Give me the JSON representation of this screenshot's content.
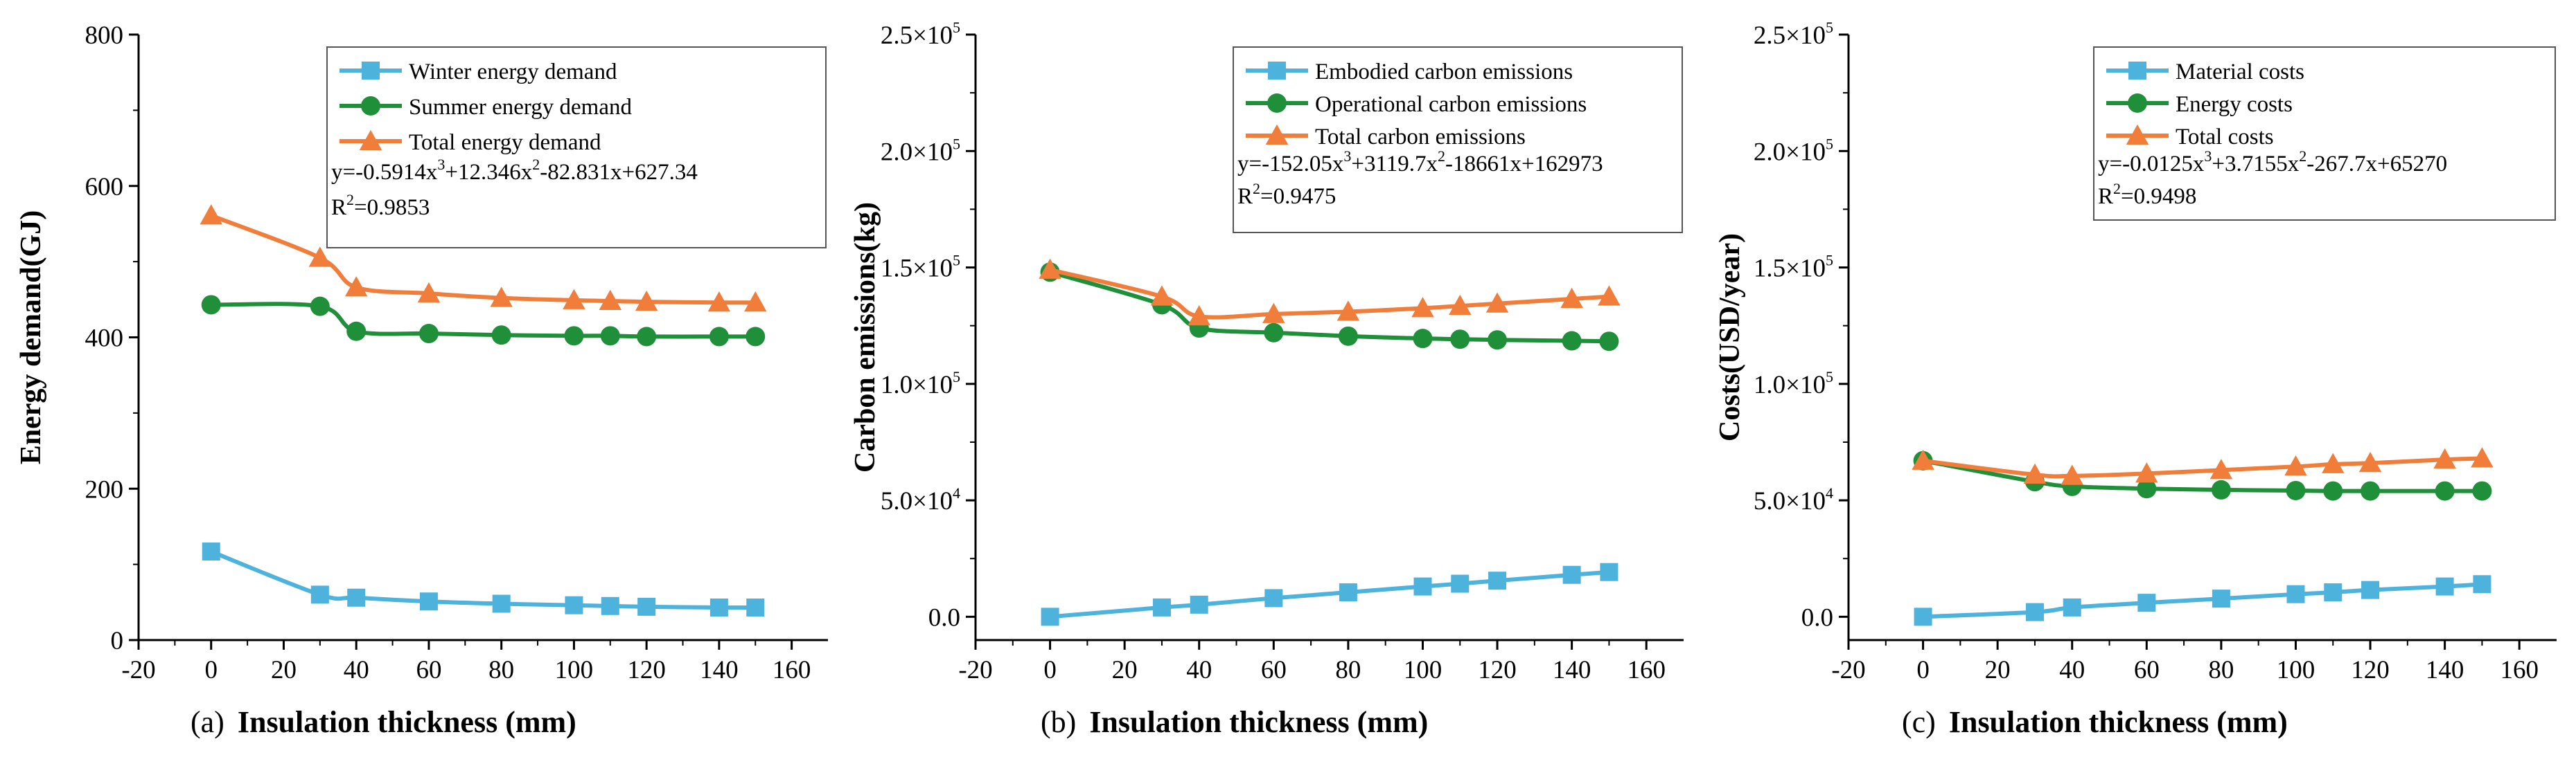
{
  "chart_data": [
    {
      "type": "line",
      "panel": "a",
      "caption_prefix": "(a)",
      "xlabel": "Insulation thickness (mm)",
      "ylabel": "Energy demand(GJ)",
      "xlim": [
        -20,
        170
      ],
      "ylim": [
        0,
        800
      ],
      "xticks": [
        -20,
        0,
        20,
        40,
        60,
        80,
        100,
        120,
        140,
        160
      ],
      "yticks": [
        {
          "v": 0,
          "label": "0"
        },
        {
          "v": 200,
          "label": "200"
        },
        {
          "v": 400,
          "label": "400"
        },
        {
          "v": 600,
          "label": "600"
        },
        {
          "v": 800,
          "label": "800"
        }
      ],
      "x": [
        0,
        30,
        40,
        60,
        80,
        100,
        110,
        120,
        140,
        150
      ],
      "series": [
        {
          "name": "Winter energy demand",
          "color": "#4db3dc",
          "marker": "square",
          "values": [
            117,
            60,
            56,
            51,
            48,
            46,
            45,
            44,
            43,
            43
          ]
        },
        {
          "name": "Summer energy demand",
          "color": "#1f8f3a",
          "marker": "circle",
          "values": [
            443,
            441,
            408,
            405,
            403,
            402,
            402,
            401,
            401,
            401
          ]
        },
        {
          "name": "Total energy demand",
          "color": "#f07e3a",
          "marker": "triangle",
          "values": [
            561,
            505,
            466,
            458,
            452,
            449,
            448,
            447,
            446,
            446
          ]
        }
      ],
      "equation": {
        "prefix": "y=-0.5914x",
        "sup1": "3",
        "mid1": "+12.346x",
        "sup2": "2",
        "rest": "-82.831x+627.34"
      },
      "r2": {
        "base": "R",
        "sup": "2",
        "value": "=0.9853"
      }
    },
    {
      "type": "line",
      "panel": "b",
      "caption_prefix": "(b)",
      "xlabel": "Insulation thickness (mm)",
      "ylabel": "Carbon emissions(kg)",
      "xlim": [
        -20,
        170
      ],
      "ylim": [
        -10000,
        250000
      ],
      "xticks": [
        -20,
        0,
        20,
        40,
        60,
        80,
        100,
        120,
        140,
        160
      ],
      "yticks": [
        {
          "v": 0,
          "label": "0.0"
        },
        {
          "v": 50000,
          "label": "5.0×10",
          "exp": "4"
        },
        {
          "v": 100000,
          "label": "1.0×10",
          "exp": "5"
        },
        {
          "v": 150000,
          "label": "1.5×10",
          "exp": "5"
        },
        {
          "v": 200000,
          "label": "2.0×10",
          "exp": "5"
        },
        {
          "v": 250000,
          "label": "2.5×10",
          "exp": "5"
        }
      ],
      "x": [
        0,
        30,
        40,
        60,
        80,
        100,
        110,
        120,
        140,
        150
      ],
      "series": [
        {
          "name": "Embodied carbon emissions",
          "color": "#4db3dc",
          "marker": "square",
          "values": [
            0,
            4000,
            5200,
            8000,
            10500,
            13000,
            14200,
            15500,
            18000,
            19200
          ]
        },
        {
          "name": "Operational carbon emissions",
          "color": "#1f8f3a",
          "marker": "circle",
          "values": [
            148000,
            134000,
            124000,
            122000,
            120500,
            119500,
            119200,
            118900,
            118500,
            118300
          ]
        },
        {
          "name": "Total carbon emissions",
          "color": "#f07e3a",
          "marker": "triangle",
          "values": [
            149000,
            137500,
            129000,
            130000,
            131000,
            132500,
            133500,
            134500,
            136500,
            137500
          ]
        }
      ],
      "equation": {
        "prefix": "y=-152.05x",
        "sup1": "3",
        "mid1": "+3119.7x",
        "sup2": "2",
        "rest": "-18661x+162973"
      },
      "r2": {
        "base": "R",
        "sup": "2",
        "value": "=0.9475"
      }
    },
    {
      "type": "line",
      "panel": "c",
      "caption_prefix": "(c)",
      "xlabel": "Insulation thickness (mm)",
      "ylabel": "Costs(USD/year)",
      "xlim": [
        -20,
        170
      ],
      "ylim": [
        -10000,
        250000
      ],
      "xticks": [
        -20,
        0,
        20,
        40,
        60,
        80,
        100,
        120,
        140,
        160
      ],
      "yticks": [
        {
          "v": 0,
          "label": "0.0"
        },
        {
          "v": 50000,
          "label": "5.0×10",
          "exp": "4"
        },
        {
          "v": 100000,
          "label": "1.0×10",
          "exp": "5"
        },
        {
          "v": 150000,
          "label": "1.5×10",
          "exp": "5"
        },
        {
          "v": 200000,
          "label": "2.0×10",
          "exp": "5"
        },
        {
          "v": 250000,
          "label": "2.5×10",
          "exp": "5"
        }
      ],
      "x": [
        0,
        30,
        40,
        60,
        80,
        100,
        110,
        120,
        140,
        150
      ],
      "series": [
        {
          "name": "Material costs",
          "color": "#4db3dc",
          "marker": "square",
          "values": [
            0,
            2000,
            4000,
            6000,
            7800,
            9700,
            10500,
            11500,
            13000,
            14000
          ]
        },
        {
          "name": "Energy costs",
          "color": "#1f8f3a",
          "marker": "circle",
          "values": [
            67000,
            58000,
            56000,
            55000,
            54500,
            54200,
            54000,
            54000,
            54000,
            54000
          ]
        },
        {
          "name": "Total costs",
          "color": "#f07e3a",
          "marker": "triangle",
          "values": [
            67000,
            61000,
            60500,
            61500,
            63000,
            64500,
            65500,
            66000,
            67500,
            68000
          ]
        }
      ],
      "equation": {
        "prefix": "y=-0.0125x",
        "sup1": "3",
        "mid1": "+3.7155x",
        "sup2": "2",
        "rest": "-267.7x+65270"
      },
      "r2": {
        "base": "R",
        "sup": "2",
        "value": "=0.9498"
      }
    }
  ]
}
